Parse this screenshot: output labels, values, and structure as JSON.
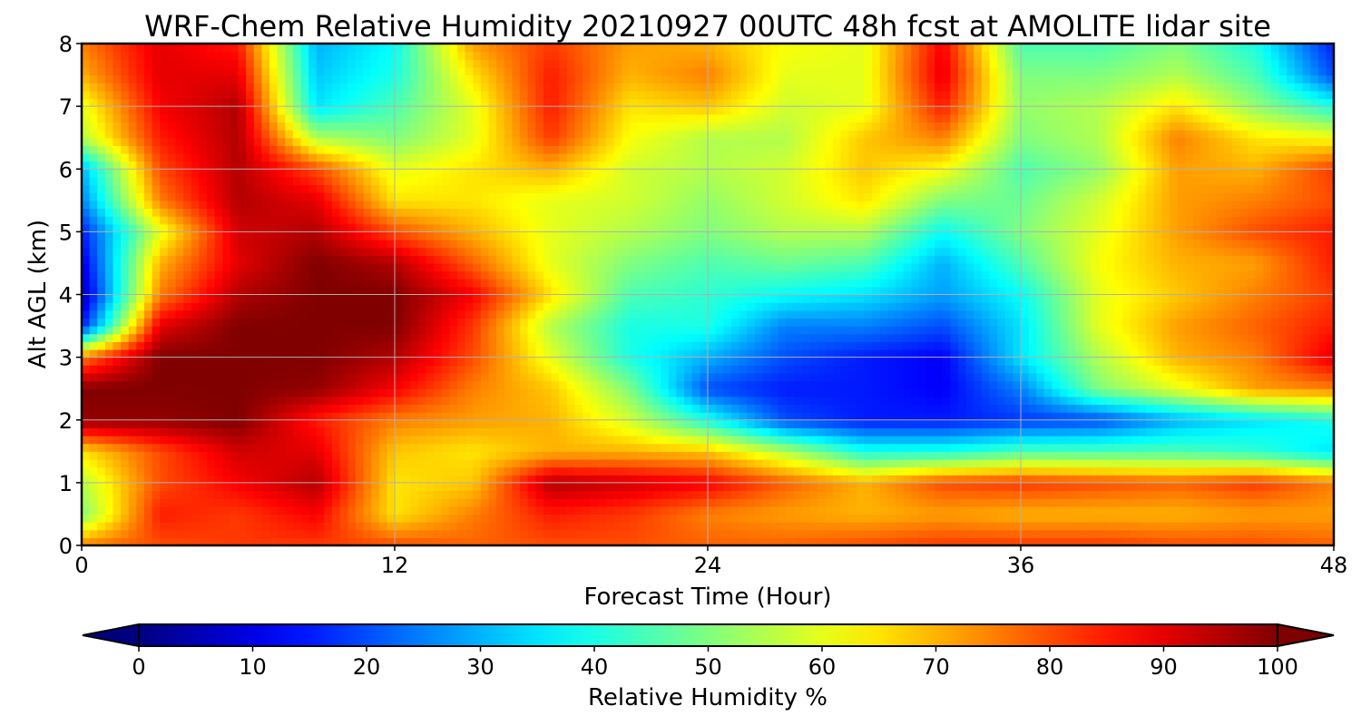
{
  "chart_data": {
    "type": "heatmap",
    "title": "WRF-Chem Relative Humidity 20210927 00UTC 48h fcst at AMOLITE lidar site",
    "xlabel": "Forecast Time (Hour)",
    "ylabel": "Alt AGL (km)",
    "xlim": [
      0,
      48
    ],
    "ylim": [
      0,
      8
    ],
    "xticks": [
      0,
      12,
      24,
      36,
      48
    ],
    "yticks": [
      0,
      1,
      2,
      3,
      4,
      5,
      6,
      7,
      8
    ],
    "grid": true,
    "colormap": "jet",
    "x": [
      0,
      3,
      6,
      9,
      12,
      15,
      18,
      21,
      24,
      27,
      30,
      33,
      36,
      39,
      42,
      45,
      48
    ],
    "y": [
      0,
      0.5,
      1,
      1.5,
      2,
      2.5,
      3,
      3.5,
      4,
      4.5,
      5,
      5.5,
      6,
      6.5,
      7,
      7.5,
      8
    ],
    "z": [
      [
        75,
        80,
        82,
        82,
        80,
        78,
        80,
        80,
        78,
        78,
        80,
        82,
        82,
        82,
        80,
        80,
        78
      ],
      [
        50,
        85,
        82,
        88,
        65,
        75,
        85,
        82,
        75,
        72,
        70,
        72,
        70,
        70,
        70,
        72,
        72
      ],
      [
        55,
        80,
        88,
        95,
        65,
        68,
        95,
        92,
        88,
        78,
        70,
        80,
        82,
        80,
        78,
        82,
        75
      ],
      [
        65,
        80,
        92,
        90,
        68,
        65,
        70,
        70,
        68,
        55,
        40,
        40,
        45,
        45,
        45,
        42,
        35
      ],
      [
        98,
        98,
        100,
        85,
        75,
        72,
        70,
        58,
        40,
        20,
        15,
        15,
        18,
        20,
        30,
        35,
        40
      ],
      [
        100,
        100,
        100,
        98,
        88,
        75,
        68,
        50,
        20,
        15,
        15,
        12,
        25,
        50,
        60,
        72,
        75
      ],
      [
        75,
        100,
        100,
        100,
        95,
        80,
        60,
        40,
        30,
        20,
        15,
        12,
        35,
        55,
        70,
        75,
        90
      ],
      [
        15,
        90,
        100,
        100,
        100,
        82,
        55,
        40,
        40,
        25,
        25,
        20,
        35,
        60,
        72,
        78,
        85
      ],
      [
        5,
        75,
        95,
        100,
        100,
        88,
        65,
        45,
        42,
        38,
        35,
        28,
        38,
        60,
        68,
        75,
        82
      ],
      [
        10,
        70,
        90,
        100,
        95,
        78,
        60,
        50,
        45,
        48,
        45,
        30,
        45,
        62,
        70,
        72,
        85
      ],
      [
        15,
        60,
        92,
        95,
        80,
        70,
        60,
        55,
        50,
        55,
        55,
        38,
        50,
        60,
        72,
        80,
        85
      ],
      [
        25,
        75,
        95,
        90,
        65,
        65,
        60,
        58,
        52,
        58,
        65,
        50,
        48,
        58,
        72,
        75,
        80
      ],
      [
        30,
        80,
        95,
        80,
        60,
        65,
        70,
        58,
        55,
        58,
        68,
        62,
        45,
        52,
        72,
        70,
        82
      ],
      [
        55,
        85,
        95,
        55,
        50,
        60,
        82,
        62,
        55,
        55,
        68,
        75,
        50,
        55,
        75,
        65,
        62
      ],
      [
        60,
        88,
        95,
        35,
        45,
        60,
        85,
        65,
        68,
        58,
        60,
        85,
        52,
        55,
        65,
        52,
        40
      ],
      [
        70,
        90,
        90,
        32,
        40,
        65,
        85,
        70,
        75,
        60,
        60,
        90,
        50,
        50,
        55,
        45,
        20
      ],
      [
        75,
        90,
        85,
        30,
        38,
        72,
        82,
        72,
        70,
        62,
        60,
        88,
        45,
        45,
        50,
        40,
        15
      ]
    ],
    "colorbar": {
      "label": "Relative Humidity %",
      "ticks": [
        0,
        10,
        20,
        30,
        40,
        50,
        60,
        70,
        80,
        90,
        100
      ],
      "range": [
        0,
        100
      ],
      "extend": "both"
    }
  }
}
